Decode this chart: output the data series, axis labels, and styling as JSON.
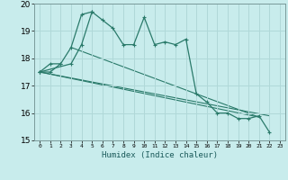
{
  "xlabel": "Humidex (Indice chaleur)",
  "background_color": "#c8ecec",
  "grid_color": "#b0d8d8",
  "line_color": "#2a7a6a",
  "x_data": [
    0,
    1,
    2,
    3,
    4,
    5,
    6,
    7,
    8,
    9,
    10,
    11,
    12,
    13,
    14,
    15,
    16,
    17,
    18,
    19,
    20,
    21,
    22,
    23
  ],
  "series1": [
    17.5,
    17.5,
    17.8,
    18.4,
    19.6,
    19.7,
    19.4,
    19.1,
    18.5,
    18.5,
    19.5,
    18.5,
    18.6,
    18.5,
    18.7,
    16.7,
    16.4,
    16.0,
    16.0,
    15.8,
    15.8,
    15.9,
    15.3,
    null
  ],
  "series2_x": [
    0,
    3,
    4,
    5
  ],
  "series2_y": [
    17.5,
    17.8,
    18.5,
    19.7
  ],
  "series3_x": [
    0,
    1,
    2
  ],
  "series3_y": [
    17.5,
    17.8,
    17.8
  ],
  "trend_lines": [
    {
      "x": [
        0,
        22
      ],
      "y": [
        17.5,
        15.9
      ]
    },
    {
      "x": [
        0,
        21
      ],
      "y": [
        17.5,
        15.85
      ]
    },
    {
      "x": [
        3,
        21
      ],
      "y": [
        18.4,
        15.85
      ]
    }
  ],
  "ylim": [
    15.0,
    20.0
  ],
  "xlim": [
    -0.5,
    23.5
  ],
  "yticks": [
    15,
    16,
    17,
    18,
    19,
    20
  ],
  "xticks": [
    0,
    1,
    2,
    3,
    4,
    5,
    6,
    7,
    8,
    9,
    10,
    11,
    12,
    13,
    14,
    15,
    16,
    17,
    18,
    19,
    20,
    21,
    22,
    23
  ],
  "xtick_labels": [
    "0",
    "1",
    "2",
    "3",
    "4",
    "5",
    "6",
    "7",
    "8",
    "9",
    "10",
    "11",
    "12",
    "13",
    "14",
    "15",
    "16",
    "17",
    "18",
    "19",
    "20",
    "21",
    "22",
    "23"
  ]
}
